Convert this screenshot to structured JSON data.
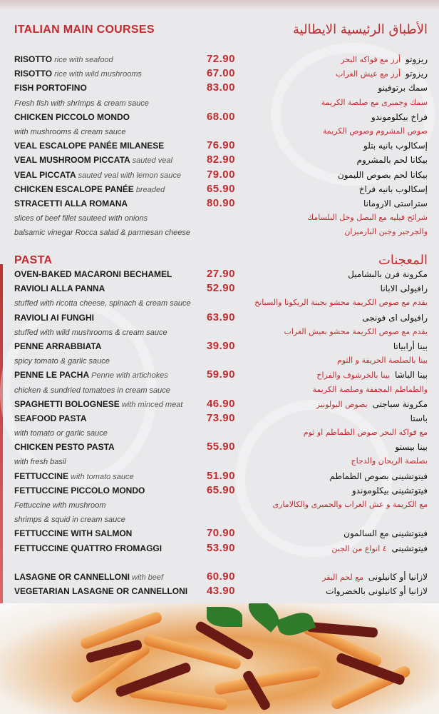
{
  "sections": [
    {
      "title_en": "ITALIAN MAIN COURSES",
      "title_ar": "الأطباق الرئيسية الايطالية",
      "rows": [
        {
          "type": "item",
          "name": "RISOTTO",
          "desc": "rice with seafood",
          "price": "72.90",
          "ar_name": "ريزوتو",
          "ar_desc": "أرز مع فواكه البحر"
        },
        {
          "type": "item",
          "name": "RISOTTO",
          "desc": "rice with wild mushrooms",
          "price": "67.00",
          "ar_name": "ريزوتو",
          "ar_desc": "أرز مع عيش الغراب"
        },
        {
          "type": "item",
          "name": "FISH PORTOFINO",
          "desc": "",
          "price": "83.00",
          "ar_name": "سمك برتوفينو",
          "ar_desc": ""
        },
        {
          "type": "note",
          "en": "Fresh fish with shrimps & cream sauce",
          "ar": "سمك وجمبرى مع صلصة الكريمة"
        },
        {
          "type": "item",
          "name": "CHICKEN PICCOLO MONDO",
          "desc": "",
          "price": "68.00",
          "ar_name": "فراخ بيكلوموندو",
          "ar_desc": ""
        },
        {
          "type": "note",
          "en": "with mushrooms & cream sauce",
          "ar": "صوص المشروم وصوص الكريمة"
        },
        {
          "type": "item",
          "name": "VEAL ESCALOPE PANÉE MILANESE",
          "desc": "",
          "price": "76.90",
          "ar_name": "إسكالوب بانيه بتلو",
          "ar_desc": ""
        },
        {
          "type": "item",
          "name": "VEAL MUSHROOM PICCATA",
          "desc": "sauted veal",
          "price": "82.90",
          "ar_name": "بيكاتا لحم بالمشروم",
          "ar_desc": ""
        },
        {
          "type": "item",
          "name": "VEAL PICCATA",
          "desc": "sauted veal with lemon sauce",
          "price": "79.00",
          "ar_name": "بيكاتا لحم بصوص الليمون",
          "ar_desc": ""
        },
        {
          "type": "item",
          "name": "CHICKEN ESCALOPE PANÉE",
          "desc": "breaded",
          "price": "65.90",
          "ar_name": "إسكالوب بانيه فراخ",
          "ar_desc": ""
        },
        {
          "type": "item",
          "name": "STRACETTI ALLA ROMANA",
          "desc": "",
          "price": "80.90",
          "ar_name": "ستراستى الارومانا",
          "ar_desc": ""
        },
        {
          "type": "note",
          "en": "slices of beef fillet sauteed with onions",
          "ar": "شرائح فيليه مع البصل وخل البلسامك"
        },
        {
          "type": "note",
          "en": "balsamic vinegar Rocca salad & parmesan cheese",
          "ar": "والجرجير وجبن البارميزان"
        }
      ]
    },
    {
      "title_en": "PASTA",
      "title_ar": "المعجنات",
      "rows": [
        {
          "type": "item",
          "name": "OVEN-BAKED MACARONI BECHAMEL",
          "desc": "",
          "price": "27.90",
          "ar_name": "مكرونة فرن بالبشاميل",
          "ar_desc": ""
        },
        {
          "type": "item",
          "name": "RAVIOLI ALLA PANNA",
          "desc": "",
          "price": "52.90",
          "ar_name": "رافيولى الابانا",
          "ar_desc": ""
        },
        {
          "type": "note",
          "en": "stuffed with ricotta cheese, spinach & cream sauce",
          "ar": "يقدم مع صوص الكريمة محشو بجبنة الريكوتا والسبانخ"
        },
        {
          "type": "item",
          "name": "RAVIOLI AI FUNGHI",
          "desc": "",
          "price": "63.90",
          "ar_name": "رافيولى اى فونجى",
          "ar_desc": ""
        },
        {
          "type": "note",
          "en": "stuffed with wild mushrooms & cream sauce",
          "ar": "يقدم مع صوص الكريمة محشو بعيش الغراب"
        },
        {
          "type": "item",
          "name": "PENNE ARRABBIATA",
          "desc": "",
          "price": "39.90",
          "ar_name": "بينا أرابياتا",
          "ar_desc": ""
        },
        {
          "type": "note",
          "en": "spicy tomato & garlic sauce",
          "ar": "بينا بالصلصة الحريفة و الثوم"
        },
        {
          "type": "item",
          "name": "PENNE LE PACHA",
          "desc": "Penne with artichokes",
          "price": "59.90",
          "ar_name": "بينا الباشا",
          "ar_desc": "بينا بالخرشوف والفراخ"
        },
        {
          "type": "note",
          "en": "chicken & sundried tomatoes in cream sauce",
          "ar": "والطماطم المجففة وصلصة الكريمة"
        },
        {
          "type": "item",
          "name": "SPAGHETTI BOLOGNESE",
          "desc": "with minced meat",
          "price": "46.90",
          "ar_name": "مكرونة سباجتى",
          "ar_desc": "بصوص البولونيز"
        },
        {
          "type": "item",
          "name": "SEAFOOD PASTA",
          "desc": "",
          "price": "73.90",
          "ar_name": "باستا",
          "ar_desc": ""
        },
        {
          "type": "note",
          "en": "with tomato or garlic sauce",
          "ar": "مع فواكه البحر صوص الطماطم او ثوم"
        },
        {
          "type": "item",
          "name": "CHICKEN PESTO PASTA",
          "desc": "",
          "price": "55.90",
          "ar_name": "بينا بيستو",
          "ar_desc": ""
        },
        {
          "type": "note",
          "en": "with fresh basil",
          "ar": "بصلصة الريحان والدجاج"
        },
        {
          "type": "item",
          "name": "FETTUCCINE",
          "desc": "with tomato sauce",
          "price": "51.90",
          "ar_name": "فيتوتشينى بصوص الطماطم",
          "ar_desc": ""
        },
        {
          "type": "item",
          "name": "FETTUCCINE PICCOLO MONDO",
          "desc": "",
          "price": "65.90",
          "ar_name": "فيتوتشينى بيكلوموندو",
          "ar_desc": ""
        },
        {
          "type": "note",
          "en": "Fettuccine with mushroom",
          "ar": "مع الكريمة و عش الغراب والجمبرى والكالامارى"
        },
        {
          "type": "note",
          "en": " shrimps & squid in cream sauce",
          "ar": ""
        },
        {
          "type": "item",
          "name": "FETTUCCINE WITH SALMON",
          "desc": "",
          "price": "70.90",
          "ar_name": "فيتوتشينى مع السالمون",
          "ar_desc": ""
        },
        {
          "type": "item",
          "name": "FETTUCCINE QUATTRO FROMAGGI",
          "desc": "",
          "price": "53.90",
          "ar_name": "فيتوتشينى",
          "ar_desc": "٤ انواع من الجبن"
        },
        {
          "type": "blank"
        },
        {
          "type": "item",
          "name": "LASAGNE OR CANNELLONI",
          "desc": "with beef",
          "price": "60.90",
          "ar_name": "لازانيا أو كانيلونى",
          "ar_desc": "مع لحم البقر"
        },
        {
          "type": "item",
          "name": "VEGETARIAN LASAGNE OR CANNELLONI",
          "desc": "",
          "price": "43.90",
          "ar_name": "لازانيا أو كانيلونى بالخضروات",
          "ar_desc": ""
        }
      ]
    }
  ],
  "colors": {
    "accent": "#c32a2f",
    "background": "#e9e9eb",
    "text": "#1a1a1a"
  }
}
